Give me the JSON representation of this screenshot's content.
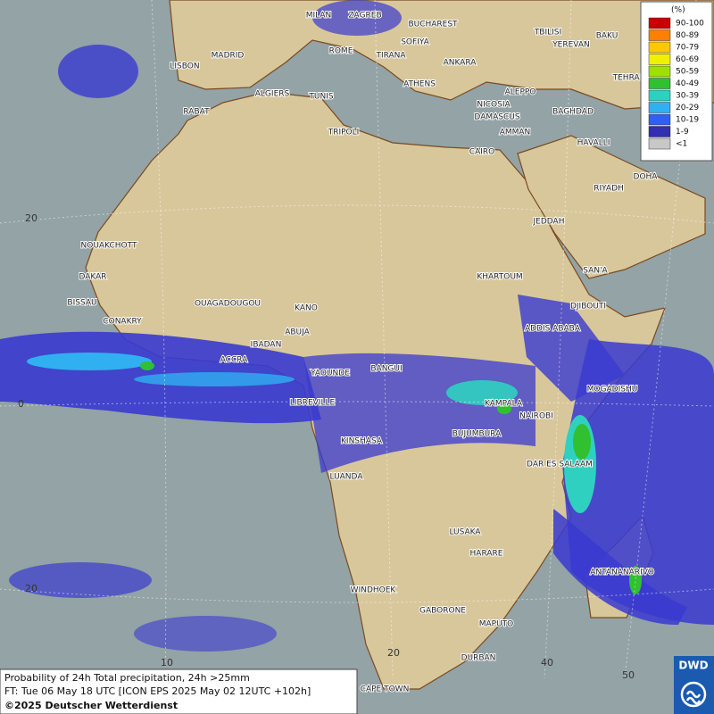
{
  "map": {
    "cities": [
      "MILAN",
      "ZAGREB",
      "BUCHAREST",
      "TBILISI",
      "BAKU",
      "SOFIYA",
      "ROME",
      "TIRANA",
      "YEREVAN",
      "LISBON",
      "MADRID",
      "ANKARA",
      "TEHRAN",
      "ATHENS",
      "ALGIERS",
      "TUNIS",
      "ALEPPO",
      "RABAT",
      "NICOSIA",
      "BAGHDAD",
      "DAMASCUS",
      "TRIPOLI",
      "AMMAN",
      "HAVALLI",
      "DOHA",
      "CAIRO",
      "RIYADH",
      "JEDDAH",
      "NOUAKCHOTT",
      "KHARTOUM",
      "SAN'A",
      "DAKAR",
      "BISSAU",
      "OUAGADOUGOU",
      "KANO",
      "DJIBOUTI",
      "CONAKRY",
      "ABUJA",
      "ADDIS ABABA",
      "IBADAN",
      "ACCRA",
      "BANGUI",
      "YAOUNDE",
      "MOGADISHU",
      "LIBREVILLE",
      "KAMPALA",
      "NAIROBI",
      "BUJUMBURA",
      "KINSHASA",
      "DAR ES SALAAM",
      "LUANDA",
      "LUSAKA",
      "HARARE",
      "ANTANANARIVO",
      "WINDHOEK",
      "GABORONE",
      "MAPUTO",
      "DURBAN",
      "CAPE TOWN"
    ],
    "lat_labels": [
      20,
      0,
      20
    ],
    "lon_labels": [
      10,
      20,
      40,
      50
    ]
  },
  "legend": {
    "unit": "(%)",
    "items": [
      {
        "label": "90-100",
        "color": "#c80000"
      },
      {
        "label": "80-89",
        "color": "#ff7f00"
      },
      {
        "label": "70-79",
        "color": "#ffc800"
      },
      {
        "label": "60-69",
        "color": "#f0f000"
      },
      {
        "label": "50-59",
        "color": "#a0e000"
      },
      {
        "label": "40-49",
        "color": "#30c030"
      },
      {
        "label": "30-39",
        "color": "#30d0c0"
      },
      {
        "label": "20-29",
        "color": "#30b0f0"
      },
      {
        "label": "10-19",
        "color": "#3060f0"
      },
      {
        "label": "1-9",
        "color": "#3030b0"
      },
      {
        "label": "<1",
        "color": "#c8c8c8"
      }
    ]
  },
  "info": {
    "line1": "Probability of 24h Total precipitation, 24h >25mm",
    "line2": "FT: Tue 06 May 18 UTC [ICON EPS 2025 May 02 12UTC +102h]",
    "line3": "©2025 Deutscher Wetterdienst"
  },
  "logo": "DWD"
}
